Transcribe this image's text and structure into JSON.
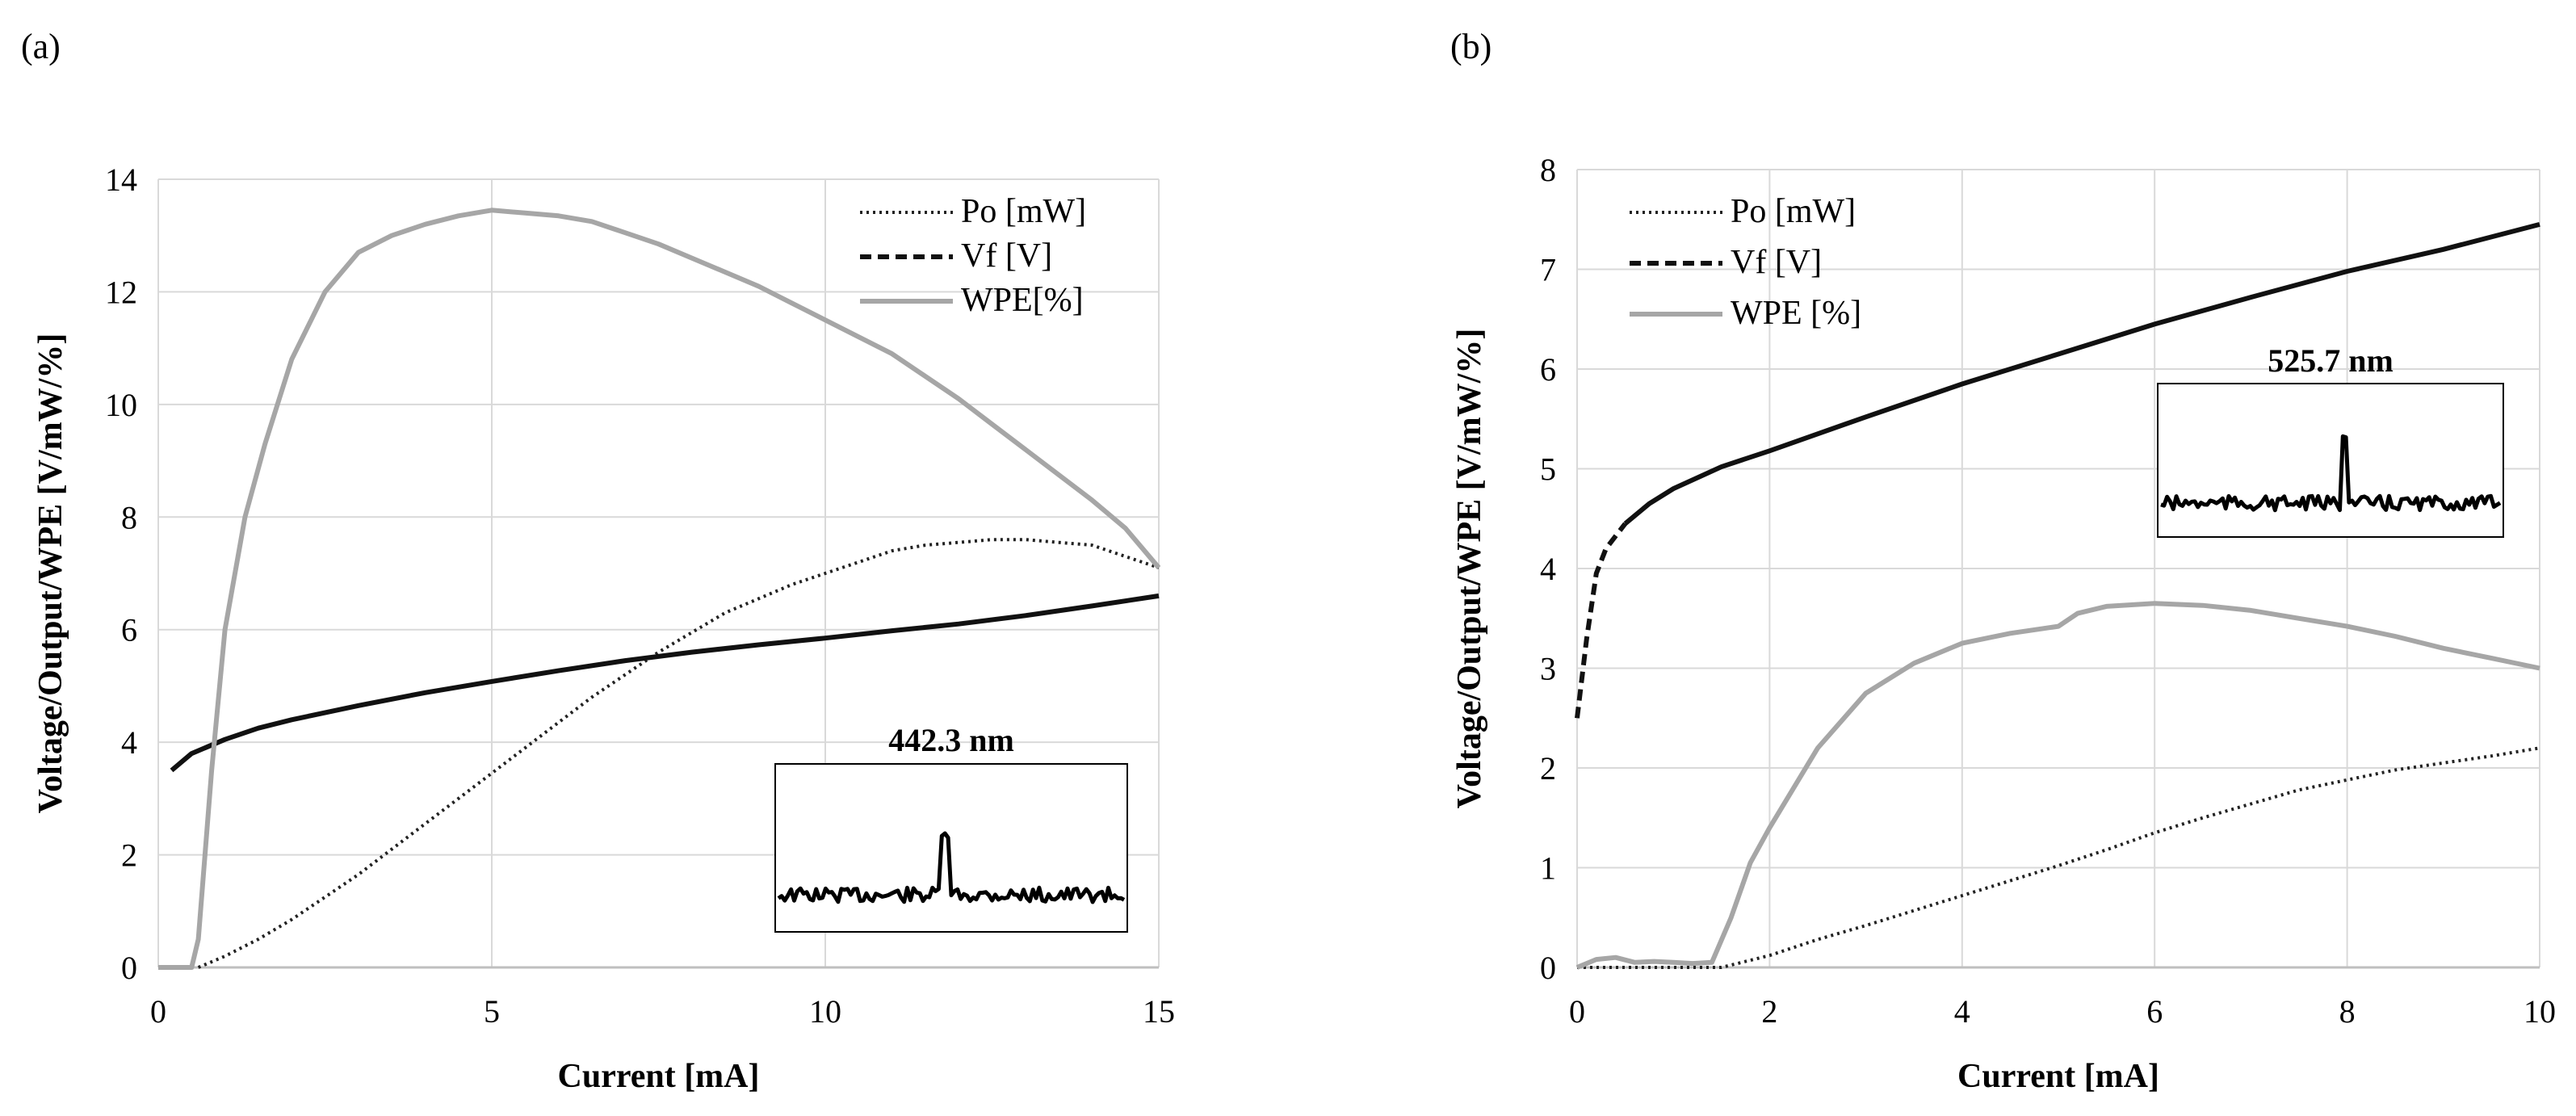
{
  "colors": {
    "po": "#222222",
    "vf": "#111111",
    "wpe": "#a6a6a6",
    "grid": "#d9d9d9",
    "axis": "#bfbfbf",
    "text": "#000000"
  },
  "chart_data": [
    {
      "panel_label": "(a)",
      "type": "line",
      "xlabel": "Current [mA]",
      "ylabel": "Voltage/Output/WPE [V/mW/%]",
      "xlim": [
        0,
        15
      ],
      "ylim": [
        0,
        14
      ],
      "xticks": [
        0,
        5,
        10,
        15
      ],
      "yticks": [
        0,
        2,
        4,
        6,
        8,
        10,
        12,
        14
      ],
      "grid": true,
      "legend_position": "top-right",
      "series": [
        {
          "name": "Po [mW]",
          "style": "dotted",
          "x": [
            0.6,
            1,
            1.5,
            2,
            2.5,
            3,
            3.5,
            4,
            4.5,
            5,
            5.5,
            6,
            6.5,
            7,
            7.5,
            8,
            8.5,
            9,
            9.5,
            10,
            10.5,
            11,
            11.5,
            12,
            12.5,
            13,
            13.5,
            14,
            14.5,
            15
          ],
          "y": [
            0,
            0.2,
            0.5,
            0.85,
            1.25,
            1.65,
            2.1,
            2.55,
            3.0,
            3.45,
            3.9,
            4.35,
            4.8,
            5.2,
            5.6,
            5.95,
            6.3,
            6.55,
            6.8,
            7.0,
            7.2,
            7.4,
            7.5,
            7.55,
            7.6,
            7.6,
            7.55,
            7.5,
            7.3,
            7.1
          ]
        },
        {
          "name": "Vf [V]",
          "style": "solid",
          "x": [
            0.2,
            0.5,
            1,
            1.5,
            2,
            3,
            4,
            5,
            6,
            7,
            8,
            9,
            10,
            11,
            12,
            13,
            14,
            15
          ],
          "y": [
            3.5,
            3.8,
            4.05,
            4.25,
            4.4,
            4.65,
            4.88,
            5.08,
            5.27,
            5.45,
            5.6,
            5.73,
            5.85,
            5.98,
            6.1,
            6.25,
            6.42,
            6.6
          ]
        },
        {
          "name": "WPE[%]",
          "style": "solid",
          "x": [
            0,
            0.5,
            0.6,
            0.8,
            1,
            1.3,
            1.6,
            2,
            2.5,
            3,
            3.5,
            4,
            4.5,
            5,
            5.5,
            6,
            6.5,
            7,
            7.5,
            8,
            8.5,
            9,
            9.5,
            10,
            10.5,
            11,
            11.5,
            12,
            12.5,
            13,
            13.5,
            14,
            14.5,
            15
          ],
          "y": [
            0,
            0,
            0.5,
            3.5,
            6.0,
            8.0,
            9.3,
            10.8,
            12.0,
            12.7,
            13.0,
            13.2,
            13.35,
            13.45,
            13.4,
            13.35,
            13.25,
            13.05,
            12.85,
            12.6,
            12.35,
            12.1,
            11.8,
            11.5,
            11.2,
            10.9,
            10.5,
            10.1,
            9.65,
            9.2,
            8.75,
            8.3,
            7.8,
            7.1
          ]
        }
      ],
      "inset": {
        "label": "442.3 nm"
      }
    },
    {
      "panel_label": "(b)",
      "type": "line",
      "xlabel": "Current [mA]",
      "ylabel": "Voltage/Output/WPE [V/mW/%]",
      "xlim": [
        0,
        10
      ],
      "ylim": [
        0,
        8
      ],
      "xticks": [
        0,
        2,
        4,
        6,
        8,
        10
      ],
      "yticks": [
        0,
        1,
        2,
        3,
        4,
        5,
        6,
        7,
        8
      ],
      "grid": true,
      "legend_position": "top-left",
      "series": [
        {
          "name": "Po [mW]",
          "style": "dotted",
          "x": [
            0,
            0.5,
            1,
            1.5,
            2,
            2.5,
            3,
            3.5,
            4,
            4.5,
            5,
            5.5,
            6,
            6.5,
            7,
            7.5,
            8,
            8.5,
            9,
            9.5,
            10
          ],
          "y": [
            0,
            0,
            0,
            0,
            0.12,
            0.28,
            0.42,
            0.57,
            0.72,
            0.87,
            1.02,
            1.18,
            1.35,
            1.5,
            1.64,
            1.78,
            1.88,
            1.98,
            2.05,
            2.12,
            2.2
          ]
        },
        {
          "name": "Vf [V]",
          "style": "dashed-solid",
          "x": [
            0,
            0.1,
            0.2,
            0.3,
            0.5,
            0.75,
            1,
            1.5,
            2,
            3,
            4,
            5,
            6,
            7,
            8,
            9,
            10
          ],
          "y": [
            2.5,
            3.3,
            3.95,
            4.2,
            4.45,
            4.65,
            4.8,
            5.02,
            5.18,
            5.52,
            5.85,
            6.15,
            6.45,
            6.72,
            6.98,
            7.2,
            7.45
          ]
        },
        {
          "name": "WPE [%]",
          "style": "solid",
          "x": [
            0,
            0.2,
            0.4,
            0.6,
            0.8,
            1,
            1.2,
            1.4,
            1.6,
            1.8,
            2,
            2.5,
            3,
            3.5,
            4,
            4.5,
            5,
            5.2,
            5.5,
            6,
            6.5,
            7,
            7.5,
            8,
            8.5,
            9,
            9.5,
            10
          ],
          "y": [
            0,
            0.08,
            0.1,
            0.05,
            0.06,
            0.05,
            0.04,
            0.05,
            0.5,
            1.05,
            1.4,
            2.2,
            2.75,
            3.05,
            3.25,
            3.35,
            3.42,
            3.55,
            3.62,
            3.65,
            3.63,
            3.58,
            3.5,
            3.42,
            3.32,
            3.2,
            3.1,
            3.0
          ]
        }
      ],
      "inset": {
        "label": "525.7 nm"
      }
    }
  ]
}
